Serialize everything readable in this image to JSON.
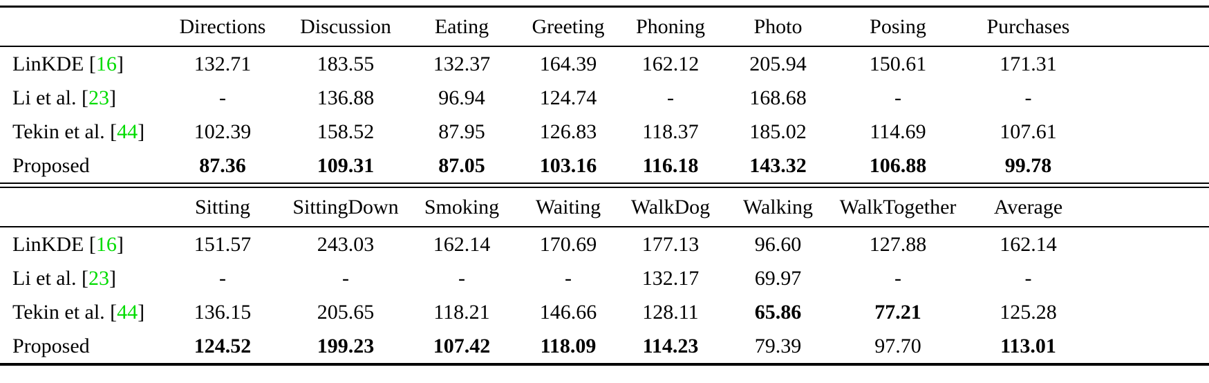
{
  "table": {
    "cite_color": "#00DC00",
    "sections": [
      {
        "columns": [
          "Directions",
          "Discussion",
          "Eating",
          "Greeting",
          "Phoning",
          "Photo",
          "Posing",
          "Purchases"
        ],
        "rows": [
          {
            "method": "LinKDE",
            "cite": "16",
            "cells": [
              {
                "v": "132.71"
              },
              {
                "v": "183.55"
              },
              {
                "v": "132.37"
              },
              {
                "v": "164.39"
              },
              {
                "v": "162.12"
              },
              {
                "v": "205.94"
              },
              {
                "v": "150.61"
              },
              {
                "v": "171.31"
              }
            ]
          },
          {
            "method": "Li et al.",
            "cite": "23",
            "cells": [
              {
                "v": "-"
              },
              {
                "v": "136.88"
              },
              {
                "v": "96.94"
              },
              {
                "v": "124.74"
              },
              {
                "v": "-"
              },
              {
                "v": "168.68"
              },
              {
                "v": "-"
              },
              {
                "v": "-"
              }
            ]
          },
          {
            "method": "Tekin et al.",
            "cite": "44",
            "cells": [
              {
                "v": "102.39"
              },
              {
                "v": "158.52"
              },
              {
                "v": "87.95"
              },
              {
                "v": "126.83"
              },
              {
                "v": "118.37"
              },
              {
                "v": "185.02"
              },
              {
                "v": "114.69"
              },
              {
                "v": "107.61"
              }
            ]
          },
          {
            "method": "Proposed",
            "cells": [
              {
                "v": "87.36",
                "b": true
              },
              {
                "v": "109.31",
                "b": true
              },
              {
                "v": "87.05",
                "b": true
              },
              {
                "v": "103.16",
                "b": true
              },
              {
                "v": "116.18",
                "b": true
              },
              {
                "v": "143.32",
                "b": true
              },
              {
                "v": "106.88",
                "b": true
              },
              {
                "v": "99.78",
                "b": true
              }
            ]
          }
        ]
      },
      {
        "columns": [
          "Sitting",
          "SittingDown",
          "Smoking",
          "Waiting",
          "WalkDog",
          "Walking",
          "WalkTogether",
          "Average"
        ],
        "rows": [
          {
            "method": "LinKDE",
            "cite": "16",
            "cells": [
              {
                "v": "151.57"
              },
              {
                "v": "243.03"
              },
              {
                "v": "162.14"
              },
              {
                "v": "170.69"
              },
              {
                "v": "177.13"
              },
              {
                "v": "96.60"
              },
              {
                "v": "127.88"
              },
              {
                "v": "162.14"
              }
            ]
          },
          {
            "method": "Li et al.",
            "cite": "23",
            "cells": [
              {
                "v": "-"
              },
              {
                "v": "-"
              },
              {
                "v": "-"
              },
              {
                "v": "-"
              },
              {
                "v": "132.17"
              },
              {
                "v": "69.97"
              },
              {
                "v": "-"
              },
              {
                "v": "-"
              }
            ]
          },
          {
            "method": "Tekin et al.",
            "cite": "44",
            "cells": [
              {
                "v": "136.15"
              },
              {
                "v": "205.65"
              },
              {
                "v": "118.21"
              },
              {
                "v": "146.66"
              },
              {
                "v": "128.11"
              },
              {
                "v": "65.86",
                "b": true
              },
              {
                "v": "77.21",
                "b": true
              },
              {
                "v": "125.28"
              }
            ]
          },
          {
            "method": "Proposed",
            "cells": [
              {
                "v": "124.52",
                "b": true
              },
              {
                "v": "199.23",
                "b": true
              },
              {
                "v": "107.42",
                "b": true
              },
              {
                "v": "118.09",
                "b": true
              },
              {
                "v": "114.23",
                "b": true
              },
              {
                "v": "79.39"
              },
              {
                "v": "97.70"
              },
              {
                "v": "113.01",
                "b": true
              }
            ]
          }
        ]
      }
    ]
  }
}
